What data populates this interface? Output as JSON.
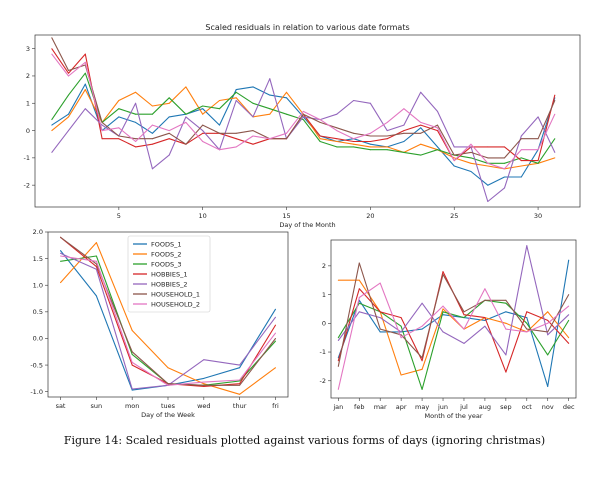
{
  "caption": "Figure 14: Scaled residuals plotted against various forms of days (ignoring christmas)",
  "colors": {
    "FOODS_1": "#1f77b4",
    "FOODS_2": "#ff7f0e",
    "FOODS_3": "#2ca02c",
    "HOBBIES_1": "#d62728",
    "HOBBIES_2": "#9467bd",
    "HOUSEHOLD_1": "#8c564b",
    "HOUSEHOLD_2": "#e377c2"
  },
  "chart_data": [
    {
      "type": "line",
      "title": "Scaled residuals in relation to various date formats",
      "xlabel": "Day of the Month",
      "ylabel": "",
      "xlim": [
        0,
        32.5
      ],
      "ylim": [
        -2.8,
        3.5
      ],
      "xticks": [
        5,
        10,
        15,
        20,
        25,
        30
      ],
      "yticks": [
        -2,
        -1,
        0,
        1,
        2,
        3
      ],
      "grid": false,
      "x": [
        1,
        2,
        3,
        4,
        5,
        6,
        7,
        8,
        9,
        10,
        11,
        12,
        13,
        14,
        15,
        16,
        17,
        18,
        19,
        20,
        21,
        22,
        23,
        24,
        25,
        26,
        27,
        28,
        29,
        30,
        31
      ],
      "series": [
        {
          "name": "FOODS_1",
          "values": [
            0.2,
            0.6,
            1.7,
            0.0,
            0.5,
            0.3,
            -0.1,
            0.5,
            0.6,
            0.8,
            0.2,
            1.5,
            1.6,
            1.3,
            1.2,
            0.5,
            -0.2,
            -0.4,
            -0.3,
            -0.5,
            -0.6,
            -0.4,
            0.1,
            -0.6,
            -1.3,
            -1.5,
            -2.0,
            -1.7,
            -1.7,
            -0.7,
            1.2
          ]
        },
        {
          "name": "FOODS_2",
          "values": [
            0.0,
            0.5,
            1.5,
            0.3,
            1.1,
            1.4,
            0.9,
            1.0,
            1.6,
            0.6,
            1.1,
            1.2,
            0.5,
            0.6,
            1.4,
            0.6,
            -0.3,
            -0.4,
            -0.5,
            -0.6,
            -0.6,
            -0.8,
            -0.5,
            -0.7,
            -1.0,
            -1.2,
            -1.3,
            -1.4,
            -1.3,
            -1.2,
            -1.0
          ]
        },
        {
          "name": "FOODS_3",
          "values": [
            0.4,
            1.3,
            2.1,
            0.3,
            0.8,
            0.6,
            0.6,
            1.2,
            0.6,
            0.9,
            0.8,
            1.4,
            1.0,
            0.8,
            0.6,
            0.4,
            -0.4,
            -0.6,
            -0.6,
            -0.7,
            -0.7,
            -0.8,
            -0.9,
            -0.7,
            -0.9,
            -1.0,
            -1.2,
            -1.2,
            -1.0,
            -1.2,
            -0.3
          ]
        },
        {
          "name": "HOBBIES_1",
          "values": [
            3.0,
            2.1,
            2.8,
            -0.3,
            -0.3,
            -0.6,
            -0.5,
            -0.3,
            -0.5,
            -0.1,
            -0.1,
            -0.3,
            -0.5,
            -0.3,
            -0.3,
            0.6,
            -0.2,
            -0.3,
            -0.4,
            -0.4,
            -0.3,
            0.0,
            0.2,
            0.0,
            -1.1,
            -0.6,
            -0.6,
            -0.6,
            -1.1,
            -1.1,
            1.3
          ]
        },
        {
          "name": "HOBBIES_2",
          "values": [
            -0.8,
            0.0,
            0.8,
            0.2,
            -0.2,
            1.0,
            -1.4,
            -0.9,
            0.5,
            0.0,
            -0.7,
            1.1,
            0.5,
            1.9,
            -0.3,
            0.5,
            0.4,
            0.6,
            1.1,
            1.0,
            0.0,
            0.2,
            1.4,
            0.7,
            -0.6,
            -0.6,
            -2.6,
            -2.1,
            -0.2,
            0.5,
            -0.8
          ]
        },
        {
          "name": "HOUSEHOLD_1",
          "values": [
            3.4,
            2.2,
            2.4,
            0.3,
            -0.2,
            -0.3,
            -0.3,
            -0.1,
            -0.5,
            0.2,
            -0.1,
            -0.1,
            0.0,
            -0.3,
            -0.3,
            0.6,
            0.3,
            0.1,
            -0.1,
            -0.2,
            -0.2,
            -0.1,
            -0.1,
            0.2,
            -0.9,
            -0.8,
            -1.0,
            -1.0,
            -0.3,
            -0.3,
            1.1
          ]
        },
        {
          "name": "HOUSEHOLD_2",
          "values": [
            2.8,
            2.0,
            2.5,
            0.0,
            0.1,
            -0.4,
            0.2,
            0.0,
            0.3,
            -0.4,
            -0.7,
            -0.6,
            -0.2,
            -0.3,
            -0.1,
            0.7,
            0.4,
            0.0,
            -0.3,
            -0.1,
            0.3,
            0.8,
            0.3,
            0.1,
            -1.1,
            -0.5,
            -1.2,
            -1.4,
            -0.7,
            -0.7,
            0.6
          ]
        }
      ]
    },
    {
      "type": "line",
      "title": "",
      "xlabel": "Day of the Week",
      "ylabel": "",
      "ylim": [
        -1.1,
        2.0
      ],
      "yticks": [
        -1.0,
        -0.5,
        0.0,
        0.5,
        1.0,
        1.5,
        2.0
      ],
      "ytick_labels": [
        "-1.0",
        "-0.5",
        "0.0",
        "0.5",
        "1.0",
        "1.5",
        "2.0"
      ],
      "grid": false,
      "legend_position": "top-center",
      "categories": [
        "sat",
        "sun",
        "mon",
        "tues",
        "wed",
        "thur",
        "fri"
      ],
      "series": [
        {
          "name": "FOODS_1",
          "values": [
            1.65,
            0.8,
            -0.97,
            -0.88,
            -0.75,
            -0.55,
            0.55
          ]
        },
        {
          "name": "FOODS_2",
          "values": [
            1.05,
            1.8,
            0.15,
            -0.55,
            -0.85,
            -1.05,
            -0.55
          ]
        },
        {
          "name": "FOODS_3",
          "values": [
            1.45,
            1.55,
            -0.3,
            -0.85,
            -0.88,
            -0.8,
            -0.05
          ]
        },
        {
          "name": "HOBBIES_1",
          "values": [
            1.9,
            1.35,
            -0.5,
            -0.85,
            -0.9,
            -0.85,
            0.25
          ]
        },
        {
          "name": "HOBBIES_2",
          "values": [
            1.6,
            1.3,
            -0.95,
            -0.88,
            -0.4,
            -0.5,
            0.4
          ]
        },
        {
          "name": "HOUSEHOLD_1",
          "values": [
            1.9,
            1.4,
            -0.25,
            -0.85,
            -0.88,
            -0.88,
            0.0
          ]
        },
        {
          "name": "HOUSEHOLD_2",
          "values": [
            1.55,
            1.45,
            -0.45,
            -0.88,
            -0.82,
            -0.78,
            0.1
          ]
        }
      ]
    },
    {
      "type": "line",
      "title": "",
      "xlabel": "Month of the year",
      "ylabel": "",
      "ylim": [
        -2.6,
        2.9
      ],
      "yticks": [
        -2,
        -1,
        0,
        1,
        2
      ],
      "grid": false,
      "categories": [
        "jan",
        "feb",
        "mar",
        "apr",
        "may",
        "jun",
        "jul",
        "aug",
        "sep",
        "oct",
        "nov",
        "dec"
      ],
      "series": [
        {
          "name": "FOODS_1",
          "values": [
            -1.2,
            0.8,
            -0.3,
            -0.3,
            -0.2,
            0.3,
            0.2,
            0.1,
            0.4,
            0.2,
            -2.2,
            2.2
          ]
        },
        {
          "name": "FOODS_2",
          "values": [
            1.5,
            1.5,
            0.4,
            -1.8,
            -1.6,
            0.5,
            -0.2,
            0.2,
            0.0,
            -0.3,
            0.4,
            -0.5
          ]
        },
        {
          "name": "FOODS_3",
          "values": [
            -0.5,
            0.7,
            0.4,
            -0.1,
            -2.3,
            0.4,
            0.2,
            0.8,
            0.7,
            0.0,
            -1.1,
            0.1
          ]
        },
        {
          "name": "HOBBIES_1",
          "values": [
            -1.3,
            1.2,
            0.4,
            0.2,
            -1.3,
            1.8,
            0.3,
            0.2,
            -1.7,
            0.4,
            0.1,
            -0.7
          ]
        },
        {
          "name": "HOBBIES_2",
          "values": [
            -0.6,
            0.4,
            0.2,
            -0.3,
            0.7,
            -0.3,
            -0.7,
            -0.1,
            -1.1,
            2.7,
            -0.4,
            0.3
          ]
        },
        {
          "name": "HOUSEHOLD_1",
          "values": [
            -1.5,
            2.1,
            -0.2,
            -0.4,
            -1.2,
            1.7,
            0.4,
            0.8,
            0.8,
            -0.2,
            -0.3,
            1.0
          ]
        },
        {
          "name": "HOUSEHOLD_2",
          "values": [
            -2.3,
            0.9,
            1.4,
            -0.5,
            -0.1,
            0.6,
            -0.2,
            1.2,
            -0.2,
            -0.3,
            0.0,
            0.6
          ]
        }
      ]
    }
  ]
}
